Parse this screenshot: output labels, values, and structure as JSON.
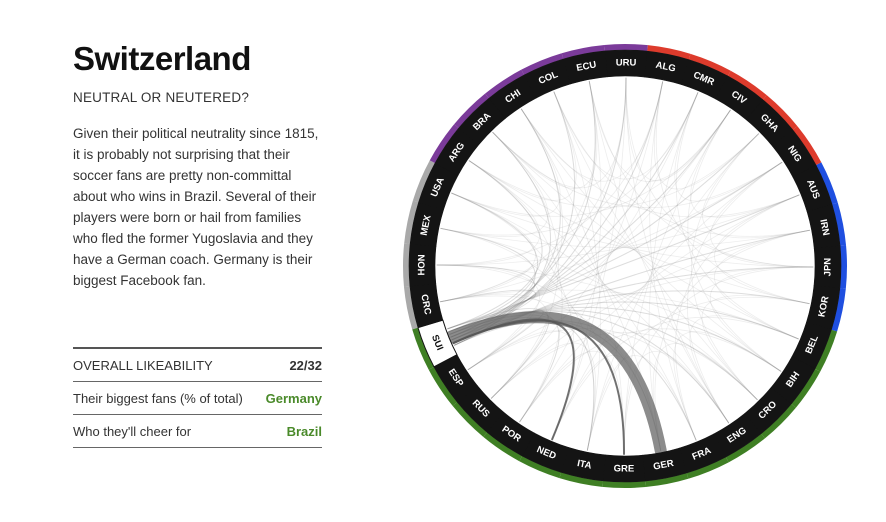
{
  "header": {
    "title": "Switzerland",
    "subtitle": "NEUTRAL OR NEUTERED?"
  },
  "description": "Given their political neutrality since 1815, it is probably not surprising that their soccer fans are pretty non-committal about who wins in Brazil. Several of their players were born or hail from families who fled the former Yugoslavia and they have a German coach. Germany is their biggest Facebook fan.",
  "stats": [
    {
      "label": "OVERALL LIKEABILITY",
      "value": "22/32"
    },
    {
      "label": "Their biggest fans (% of total)",
      "value": "Germany"
    },
    {
      "label": "Who they'll cheer for",
      "value": "Brazil"
    }
  ],
  "colors": {
    "conmebol": "#7b3b9a",
    "caf": "#dd3b2c",
    "afc": "#1f4fe0",
    "uefa": "#3f7f24",
    "concacaf": "#a9a9a9",
    "highlight_label_bg": "#ffffff",
    "value_green": "#4a8a2a"
  },
  "chord_diagram": {
    "focus": "SUI",
    "teams": [
      "URU",
      "ALG",
      "CMR",
      "CIV",
      "GHA",
      "NIG",
      "AUS",
      "IRN",
      "JPN",
      "KOR",
      "BEL",
      "BIH",
      "CRO",
      "ENG",
      "FRA",
      "GER",
      "GRE",
      "ITA",
      "NED",
      "POR",
      "RUS",
      "ESP",
      "SUI",
      "CRC",
      "HON",
      "MEX",
      "USA",
      "ARG",
      "BRA",
      "CHI",
      "COL",
      "ECU"
    ],
    "team_groups": {
      "URU": "conmebol",
      "ALG": "caf",
      "CMR": "caf",
      "CIV": "caf",
      "GHA": "caf",
      "NIG": "caf",
      "AUS": "afc",
      "IRN": "afc",
      "JPN": "afc",
      "KOR": "afc",
      "BEL": "uefa",
      "BIH": "uefa",
      "CRO": "uefa",
      "ENG": "uefa",
      "FRA": "uefa",
      "GER": "uefa",
      "GRE": "uefa",
      "ITA": "uefa",
      "NED": "uefa",
      "POR": "uefa",
      "RUS": "uefa",
      "ESP": "uefa",
      "SUI": "uefa",
      "CRC": "concacaf",
      "HON": "concacaf",
      "MEX": "concacaf",
      "USA": "concacaf",
      "ARG": "conmebol",
      "BRA": "conmebol",
      "CHI": "conmebol",
      "COL": "conmebol",
      "ECU": "conmebol"
    },
    "emphasized_links": [
      {
        "from": "SUI",
        "to": "GER",
        "level": "strong"
      },
      {
        "from": "SUI",
        "to": "GRE",
        "level": "medium"
      },
      {
        "from": "SUI",
        "to": "NED",
        "level": "medium"
      }
    ]
  }
}
